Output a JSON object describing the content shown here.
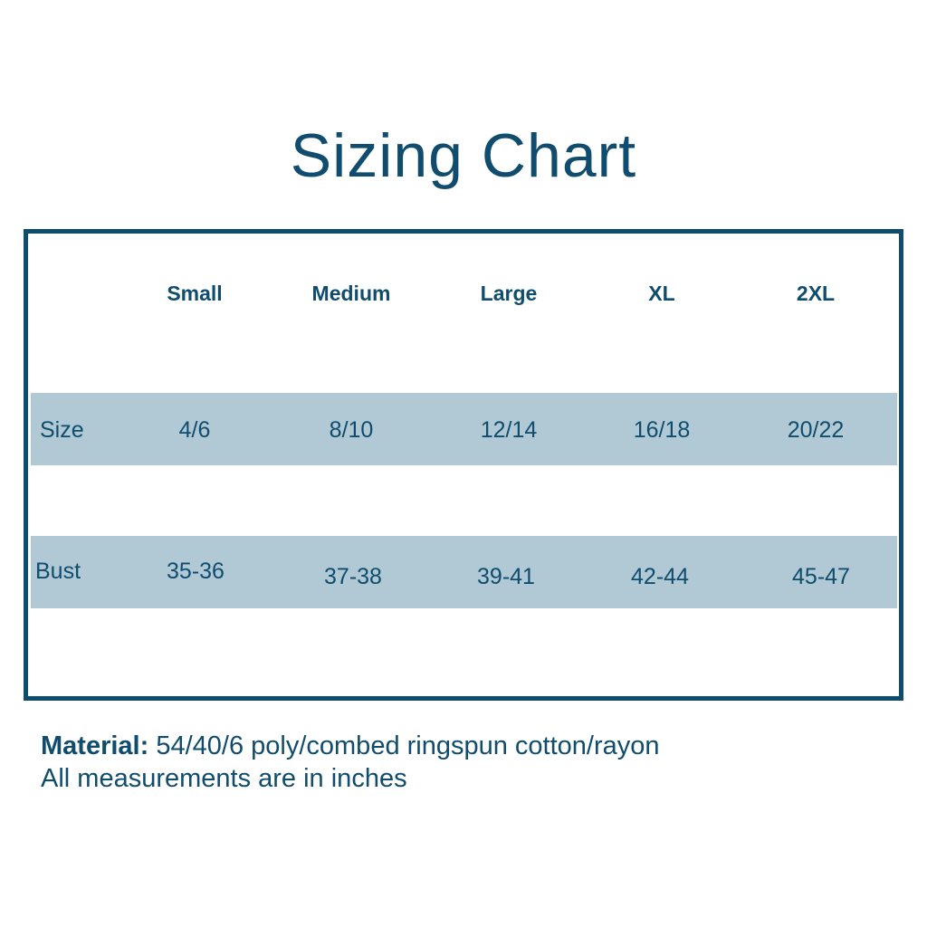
{
  "title": "Sizing Chart",
  "columns": [
    "Small",
    "Medium",
    "Large",
    "XL",
    "2XL"
  ],
  "rows": [
    {
      "label": "Size",
      "values": [
        "4/6",
        "8/10",
        "12/14",
        "16/18",
        "20/22"
      ]
    },
    {
      "label": "Bust",
      "values": [
        "35-36",
        "37-38",
        "39-41",
        "42-44",
        "45-47"
      ]
    }
  ],
  "footer": {
    "material_label": "Material:",
    "material_value": "54/40/6 poly/combed ringspun cotton/rayon",
    "note": "All measurements are in inches"
  },
  "colors": {
    "primary": "#0f4c6e",
    "band": "#b0c9d5",
    "background": "#ffffff"
  }
}
